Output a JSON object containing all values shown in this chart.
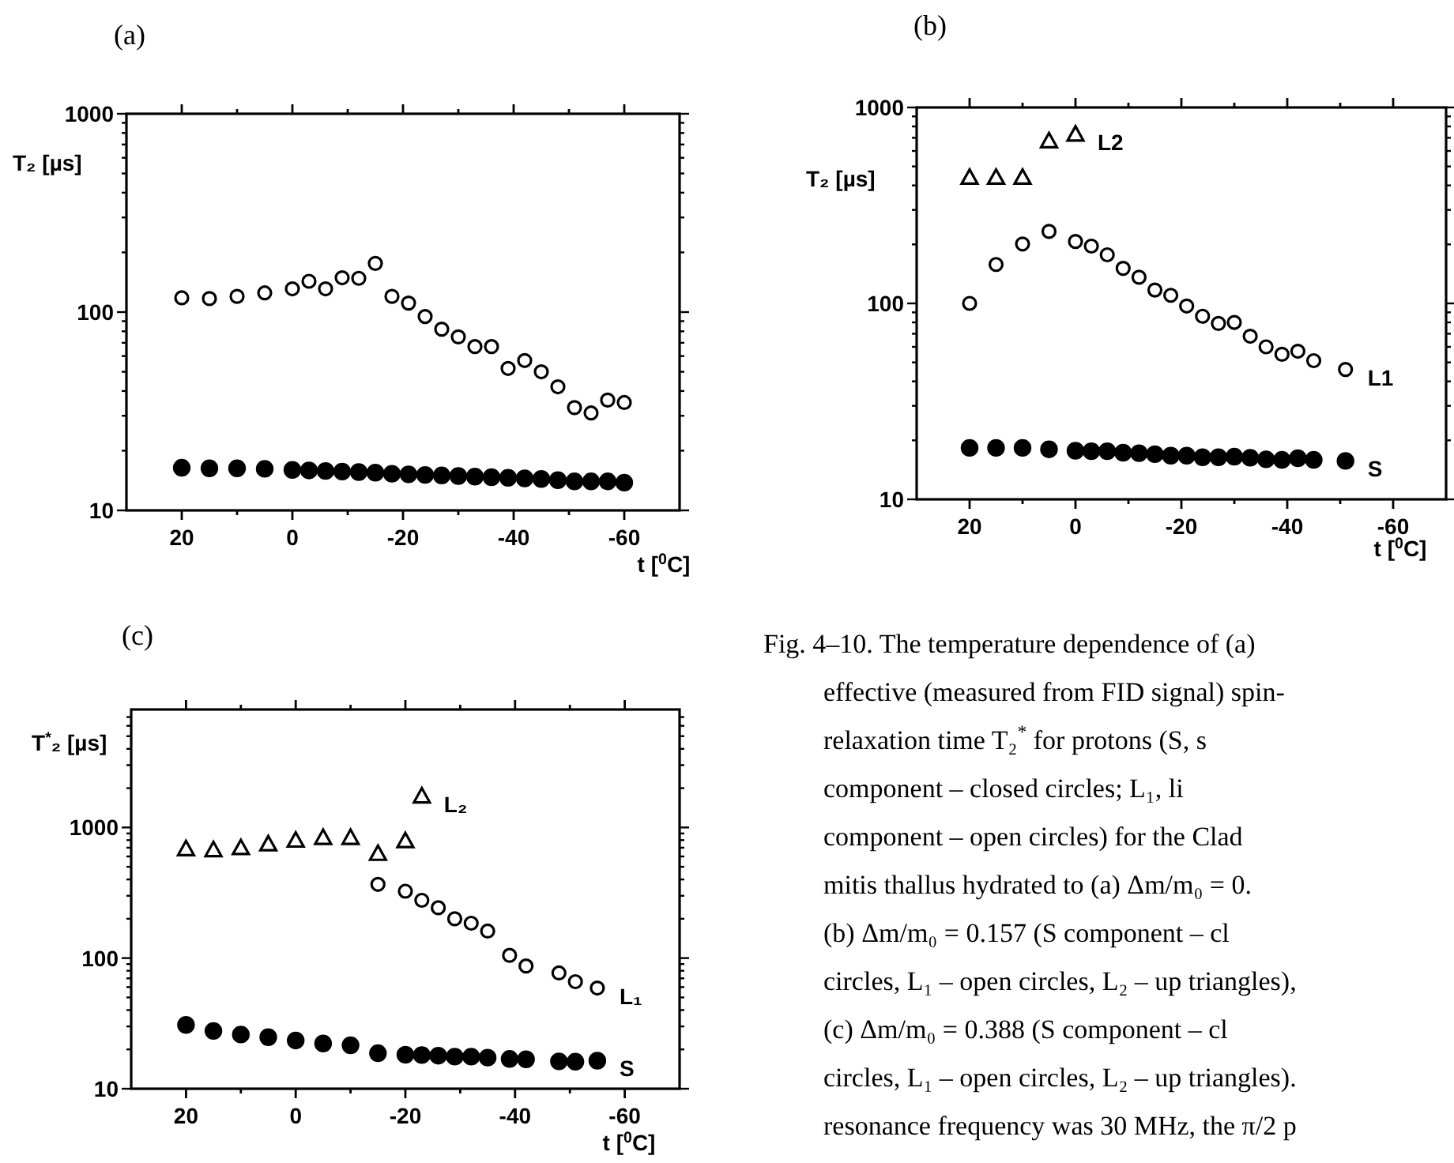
{
  "chart_data": [
    {
      "type": "scatter",
      "title": "(a)",
      "xlabel": "t [$^{0}$C]",
      "ylabel": "T₂  [µs]",
      "log": "y",
      "xlim": [
        30,
        -70
      ],
      "ylim": [
        10,
        1000
      ],
      "xticks": [
        20,
        {
          "value": 10,
          "label": null
        },
        0,
        {
          "value": -10,
          "label": null
        },
        -20,
        {
          "value": -30,
          "label": null
        },
        -40,
        {
          "value": -50,
          "label": null
        },
        -60
      ],
      "yticks": [
        10,
        {
          "value": 20,
          "label": null
        },
        {
          "value": 30,
          "label": null
        },
        {
          "value": 40,
          "label": null
        },
        {
          "value": 50,
          "label": null
        },
        {
          "value": 60,
          "label": null
        },
        {
          "value": 70,
          "label": null
        },
        {
          "value": 80,
          "label": null
        },
        {
          "value": 90,
          "label": null
        },
        100,
        {
          "value": 200,
          "label": null
        },
        {
          "value": 300,
          "label": null
        },
        {
          "value": 400,
          "label": null
        },
        {
          "value": 500,
          "label": null
        },
        {
          "value": 600,
          "label": null
        },
        {
          "value": 700,
          "label": null
        },
        {
          "value": 800,
          "label": null
        },
        {
          "value": 900,
          "label": null
        },
        1000
      ],
      "series": [
        {
          "color": "#000000",
          "marker": "circle-open",
          "x": [
            20,
            15,
            10,
            5,
            0,
            -3,
            -6,
            -9,
            -12,
            -15,
            -18,
            -21,
            -24,
            -27,
            -30,
            -33,
            -36,
            -39,
            -42,
            -45,
            -48,
            -51,
            -54,
            -57,
            -60
          ],
          "values": [
            118,
            117,
            120,
            125,
            131,
            143,
            131,
            149,
            148,
            176,
            120,
            111,
            95,
            82,
            75,
            67,
            67,
            52,
            57,
            50,
            42,
            33,
            31,
            36,
            35
          ]
        },
        {
          "color": "#000000",
          "marker": "circle",
          "x": [
            20,
            15,
            10,
            5,
            0,
            -3,
            -6,
            -9,
            -12,
            -15,
            -18,
            -21,
            -24,
            -27,
            -30,
            -33,
            -36,
            -39,
            -42,
            -45,
            -48,
            -51,
            -54,
            -57,
            -60
          ],
          "values": [
            16.4,
            16.3,
            16.3,
            16.2,
            16.0,
            15.9,
            15.8,
            15.7,
            15.6,
            15.5,
            15.3,
            15.2,
            15.1,
            15.0,
            14.9,
            14.8,
            14.7,
            14.6,
            14.5,
            14.4,
            14.2,
            14.0,
            14.0,
            14.0,
            13.8
          ]
        }
      ]
    },
    {
      "type": "scatter",
      "title": "(b)",
      "xlabel": "t [$^{0}$C]",
      "ylabel": "T₂  [µs]",
      "log": "y",
      "xlim": [
        30,
        -70
      ],
      "ylim": [
        10,
        1000
      ],
      "xticks": [
        20,
        {
          "value": 10,
          "label": null
        },
        0,
        {
          "value": -10,
          "label": null
        },
        -20,
        {
          "value": -30,
          "label": null
        },
        -40,
        {
          "value": -50,
          "label": null
        },
        -60
      ],
      "yticks": [
        10,
        {
          "value": 20,
          "label": null
        },
        {
          "value": 30,
          "label": null
        },
        {
          "value": 40,
          "label": null
        },
        {
          "value": 50,
          "label": null
        },
        {
          "value": 60,
          "label": null
        },
        {
          "value": 70,
          "label": null
        },
        {
          "value": 80,
          "label": null
        },
        {
          "value": 90,
          "label": null
        },
        100,
        {
          "value": 200,
          "label": null
        },
        {
          "value": 300,
          "label": null
        },
        {
          "value": 400,
          "label": null
        },
        {
          "value": 500,
          "label": null
        },
        {
          "value": 600,
          "label": null
        },
        {
          "value": 700,
          "label": null
        },
        {
          "value": 800,
          "label": null
        },
        {
          "value": 900,
          "label": null
        },
        1000
      ],
      "series": [
        {
          "name": "L2",
          "color": "#000000",
          "marker": "triangle-open",
          "x": [
            20,
            15,
            10,
            5,
            0
          ],
          "values": [
            440,
            440,
            440,
            675,
            730
          ]
        },
        {
          "name": "L1",
          "color": "#000000",
          "marker": "circle-open",
          "x": [
            20,
            15,
            10,
            5,
            0,
            -3,
            -6,
            -9,
            -12,
            -15,
            -18,
            -21,
            -24,
            -27,
            -30,
            -33,
            -36,
            -39,
            -42,
            -45,
            -51
          ],
          "values": [
            100,
            158,
            201,
            233,
            207,
            196,
            177,
            151,
            136,
            117,
            110,
            97,
            86,
            79,
            80,
            68,
            60,
            55,
            57,
            51,
            46
          ]
        },
        {
          "name": "S",
          "color": "#000000",
          "marker": "circle",
          "x": [
            20,
            15,
            10,
            5,
            0,
            -3,
            -6,
            -9,
            -12,
            -15,
            -18,
            -21,
            -24,
            -27,
            -30,
            -33,
            -36,
            -39,
            -42,
            -45,
            -51
          ],
          "values": [
            18.3,
            18.3,
            18.3,
            18.0,
            17.7,
            17.6,
            17.6,
            17.3,
            17.2,
            17.0,
            16.7,
            16.7,
            16.4,
            16.4,
            16.5,
            16.3,
            16.0,
            15.9,
            16.2,
            15.9,
            15.7
          ]
        }
      ]
    },
    {
      "type": "scatter",
      "title": "(c)",
      "xlabel": "t [$^{0}$C]",
      "ylabel": "T$^{*}$₂ [µs]",
      "log": "y",
      "xlim": [
        30,
        -70
      ],
      "ylim": [
        10,
        8000
      ],
      "xticks": [
        20,
        {
          "value": 10,
          "label": null
        },
        0,
        {
          "value": -10,
          "label": null
        },
        -20,
        {
          "value": -30,
          "label": null
        },
        -40,
        {
          "value": -50,
          "label": null
        },
        -60
      ],
      "yticks": [
        10,
        {
          "value": 20,
          "label": null
        },
        {
          "value": 30,
          "label": null
        },
        {
          "value": 40,
          "label": null
        },
        {
          "value": 50,
          "label": null
        },
        {
          "value": 60,
          "label": null
        },
        {
          "value": 70,
          "label": null
        },
        {
          "value": 80,
          "label": null
        },
        {
          "value": 90,
          "label": null
        },
        100,
        {
          "value": 200,
          "label": null
        },
        {
          "value": 300,
          "label": null
        },
        {
          "value": 400,
          "label": null
        },
        {
          "value": 500,
          "label": null
        },
        {
          "value": 600,
          "label": null
        },
        {
          "value": 700,
          "label": null
        },
        {
          "value": 800,
          "label": null
        },
        {
          "value": 900,
          "label": null
        },
        1000,
        {
          "value": 2000,
          "label": null
        },
        {
          "value": 3000,
          "label": null
        },
        {
          "value": 4000,
          "label": null
        },
        {
          "value": 5000,
          "label": null
        },
        {
          "value": 6000,
          "label": null
        },
        {
          "value": 7000,
          "label": null
        }
      ],
      "series": [
        {
          "name": "L₂",
          "color": "#000000",
          "marker": "triangle-open",
          "x": [
            20,
            15,
            10,
            5,
            0,
            -5,
            -10,
            -15,
            -20,
            -23
          ],
          "values": [
            687,
            675,
            700,
            748,
            798,
            837,
            837,
            632,
            791,
            1740
          ]
        },
        {
          "name": "L₁",
          "color": "#000000",
          "marker": "circle-open",
          "x": [
            -15,
            -20,
            -23,
            -26,
            -29,
            -32,
            -35,
            -39,
            -42,
            -48,
            -51,
            -55
          ],
          "values": [
            367,
            325,
            277,
            243,
            200,
            185,
            161,
            105,
            87,
            77,
            66,
            59
          ]
        },
        {
          "name": "S",
          "color": "#000000",
          "marker": "circle",
          "x": [
            20,
            15,
            10,
            5,
            0,
            -5,
            -10,
            -15,
            -20,
            -23,
            -26,
            -29,
            -32,
            -35,
            -39,
            -42,
            -48,
            -51,
            -55
          ],
          "values": [
            30.8,
            27.7,
            26.0,
            24.8,
            23.4,
            22.2,
            21.5,
            18.7,
            18.2,
            18.1,
            17.9,
            17.6,
            17.6,
            17.3,
            16.9,
            16.8,
            16.2,
            16.1,
            16.4
          ]
        }
      ]
    },
    {
      "type": "other",
      "annotations": [
        "Fig. 4–10. The temperature dependence of (a)",
        "effective (measured from FID signal) spin-",
        "relaxation time T₂$^{*}$ for protons (S, s",
        "component – closed circles; L₁, li",
        "component – open circles) for the Clad",
        "mitis thallus hydrated to (a) Δm/m₀ = 0.",
        "(b) Δm/m₀ = 0.157 (S component – cl",
        "circles, L₁ – open circles, L₂ – up triangles),",
        "(c) Δm/m₀ = 0.388 (S component – cl",
        "circles, L₁ – open circles, L₂ – up triangles).",
        "resonance frequency was 30 MHz, the π/2 p"
      ]
    }
  ]
}
